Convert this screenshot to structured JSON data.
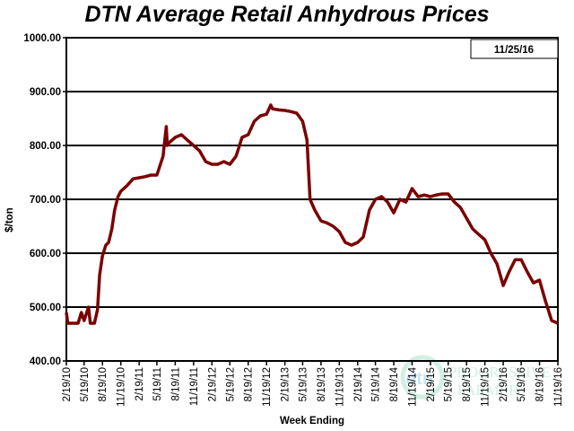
{
  "chart_data": {
    "type": "line",
    "title": "DTN Average Retail Anhydrous Prices",
    "date_label": "11/25/16",
    "xlabel": "Week Ending",
    "ylabel": "$/ton",
    "ylim": [
      400,
      1000
    ],
    "yticks": [
      "400.00",
      "500.00",
      "600.00",
      "700.00",
      "800.00",
      "900.00",
      "1000.00"
    ],
    "xlim": [
      "2/19/10",
      "11/19/16"
    ],
    "xticks": [
      "2/19/10",
      "5/19/10",
      "8/19/10",
      "11/19/10",
      "2/19/11",
      "5/19/11",
      "8/19/11",
      "11/19/11",
      "2/19/12",
      "5/19/12",
      "8/19/12",
      "11/19/12",
      "2/19/13",
      "5/19/13",
      "8/19/13",
      "11/19/13",
      "2/19/14",
      "5/19/14",
      "8/19/14",
      "11/19/14",
      "2/19/15",
      "5/19/15",
      "8/19/15",
      "11/19/15",
      "2/19/16",
      "5/19/16",
      "8/19/16",
      "11/19/16"
    ],
    "grid": true,
    "line_color": "#7b0000",
    "series": [
      {
        "x": [
          "2/19/10",
          "2/26/10",
          "3/19/10",
          "4/19/10",
          "5/5/10",
          "5/19/10",
          "6/10/10",
          "6/19/10",
          "7/10/10",
          "7/25/10",
          "8/5/10",
          "8/19/10",
          "9/5/10",
          "9/19/10",
          "10/5/10",
          "10/19/10",
          "11/5/10",
          "11/19/10",
          "12/19/10",
          "1/19/11",
          "2/19/11",
          "3/19/11",
          "4/19/11",
          "5/19/11",
          "6/19/11",
          "7/5/11",
          "7/10/11",
          "7/19/11",
          "8/19/11",
          "9/19/11",
          "10/19/11",
          "11/19/11",
          "12/19/11",
          "1/19/12",
          "2/19/12",
          "3/19/12",
          "4/19/12",
          "5/19/12",
          "6/19/12",
          "7/19/12",
          "8/19/12",
          "9/19/12",
          "10/19/12",
          "11/19/12",
          "12/10/12",
          "12/19/12",
          "1/19/13",
          "2/19/13",
          "3/19/13",
          "4/19/13",
          "5/19/13",
          "6/10/13",
          "6/25/13",
          "7/19/13",
          "8/19/13",
          "9/19/13",
          "10/19/13",
          "11/19/13",
          "12/19/13",
          "1/19/14",
          "2/19/14",
          "3/19/14",
          "4/19/14",
          "5/19/14",
          "6/19/14",
          "7/19/14",
          "8/19/14",
          "9/19/14",
          "10/19/14",
          "11/19/14",
          "12/19/14",
          "1/19/15",
          "2/19/15",
          "3/19/15",
          "4/19/15",
          "5/19/15",
          "6/19/15",
          "7/19/15",
          "8/19/15",
          "9/19/15",
          "10/19/15",
          "11/19/15",
          "12/19/15",
          "1/19/16",
          "2/19/16",
          "3/19/16",
          "4/19/16",
          "5/19/16",
          "6/19/16",
          "7/19/16",
          "8/19/16",
          "9/19/16",
          "10/19/16",
          "11/19/16"
        ],
        "values": [
          490,
          470,
          470,
          470,
          490,
          475,
          500,
          470,
          470,
          495,
          560,
          595,
          615,
          620,
          645,
          680,
          705,
          715,
          725,
          738,
          740,
          742,
          745,
          745,
          780,
          835,
          800,
          805,
          815,
          820,
          810,
          800,
          790,
          770,
          765,
          765,
          770,
          765,
          780,
          815,
          820,
          845,
          855,
          858,
          875,
          868,
          866,
          865,
          863,
          860,
          845,
          810,
          700,
          680,
          660,
          656,
          650,
          640,
          620,
          615,
          620,
          630,
          680,
          700,
          705,
          695,
          675,
          700,
          695,
          720,
          705,
          708,
          705,
          708,
          710,
          710,
          695,
          685,
          665,
          645,
          635,
          625,
          600,
          580,
          540,
          565,
          588,
          588,
          565,
          545,
          550,
          510,
          475,
          470
        ]
      }
    ]
  },
  "logo_text": "dtn The Progressive Farmer"
}
